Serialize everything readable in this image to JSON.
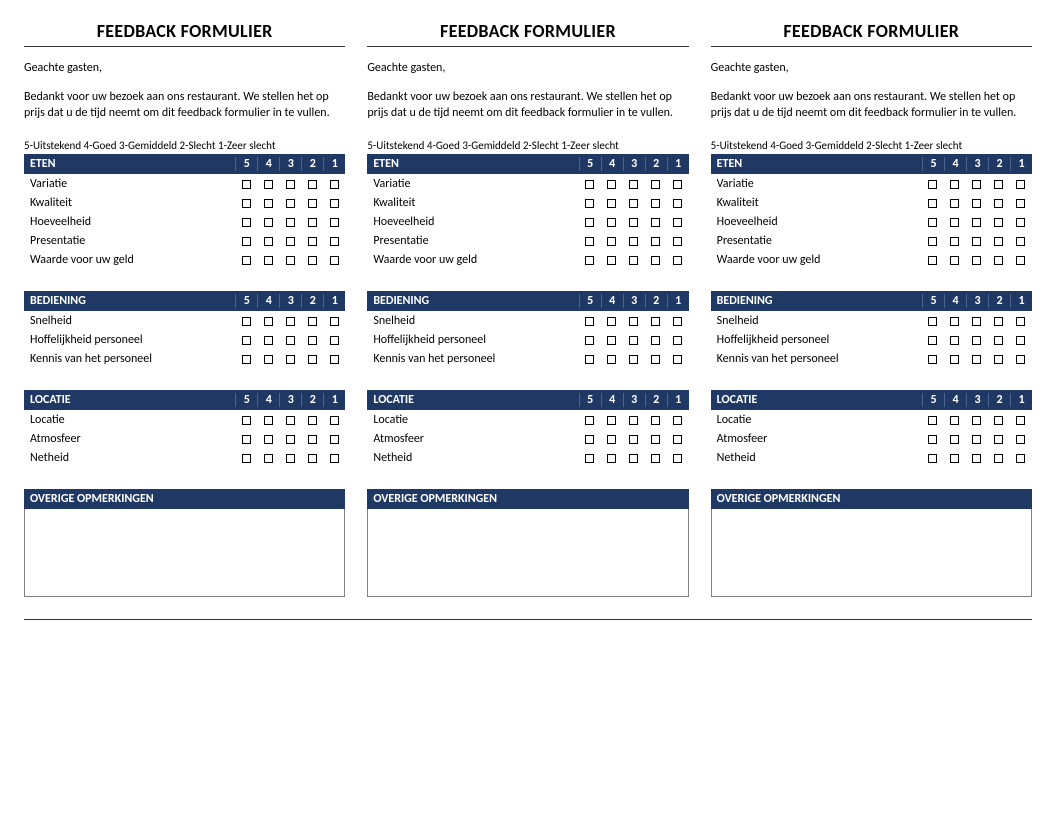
{
  "form": {
    "title": "FEEDBACK FORMULIER",
    "salutation": "Geachte gasten,",
    "intro": "Bedankt voor uw bezoek aan ons restaurant. We stellen het op prijs dat u de tijd neemt om dit feedback formulier in te vullen.",
    "scale_legend": "5-Uitstekend 4-Goed 3-Gemiddeld 2-Slecht 1-Zeer slecht",
    "scale_values": [
      "5",
      "4",
      "3",
      "2",
      "1"
    ],
    "sections": [
      {
        "heading": "ETEN",
        "items": [
          "Variatie",
          "Kwaliteit",
          "Hoeveelheid",
          "Presentatie",
          "Waarde voor uw geld"
        ]
      },
      {
        "heading": "BEDIENING",
        "items": [
          "Snelheid",
          "Hoffelijkheid personeel",
          "Kennis van het personeel"
        ]
      },
      {
        "heading": "LOCATIE",
        "items": [
          "Locatie",
          "Atmosfeer",
          "Netheid"
        ]
      }
    ],
    "comments_heading": "OVERIGE OPMERKINGEN"
  },
  "copies": 3,
  "colors": {
    "header_bg": "#1f3864",
    "header_text": "#ffffff",
    "rule": "#333333",
    "box_border": "#000000",
    "comments_border": "#808080",
    "background": "#ffffff"
  },
  "typography": {
    "title_fontsize": 18,
    "body_fontsize": 12,
    "legend_fontsize": 11,
    "font_family": "Calibri"
  }
}
